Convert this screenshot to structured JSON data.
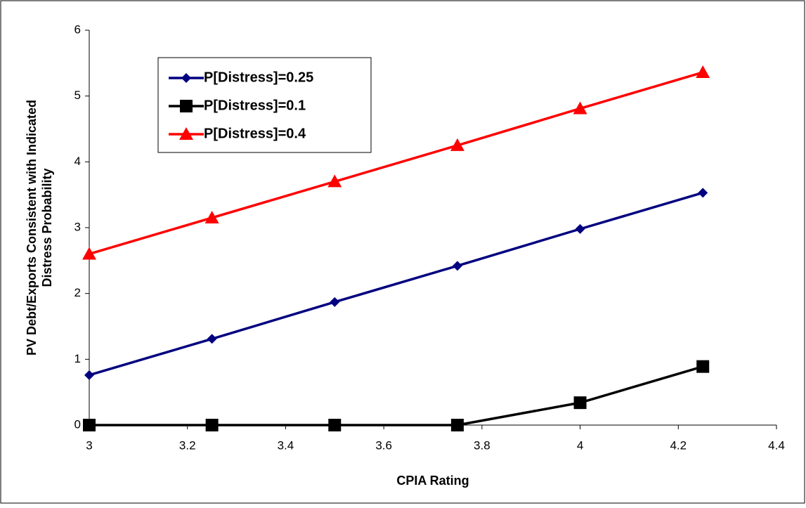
{
  "chart_data": {
    "type": "line",
    "xlabel": "CPIA Rating",
    "ylabel": [
      "PV Debt/Exports Consistent with Indicated",
      "Distress Probability"
    ],
    "x": [
      3,
      3.25,
      3.5,
      3.75,
      4,
      4.25
    ],
    "series": [
      {
        "name": "P[Distress]=0.25",
        "color": "#000080",
        "marker": "diamond",
        "values": [
          0.76,
          1.31,
          1.87,
          2.42,
          2.98,
          3.53
        ]
      },
      {
        "name": "P[Distress]=0.1",
        "color": "#000000",
        "marker": "square",
        "values": [
          0,
          0,
          0,
          0,
          0.34,
          0.89
        ]
      },
      {
        "name": "P[Distress]=0.4",
        "color": "#ff0000",
        "marker": "triangle",
        "values": [
          2.6,
          3.15,
          3.7,
          4.25,
          4.81,
          5.36
        ]
      }
    ],
    "xlim": [
      3,
      4.4
    ],
    "xticks": [
      3,
      3.2,
      3.4,
      3.6,
      3.8,
      4,
      4.2,
      4.4
    ],
    "ylim": [
      0,
      6
    ],
    "yticks": [
      0,
      1,
      2,
      3,
      4,
      5,
      6
    ],
    "grid": false,
    "legend": "upper left"
  }
}
